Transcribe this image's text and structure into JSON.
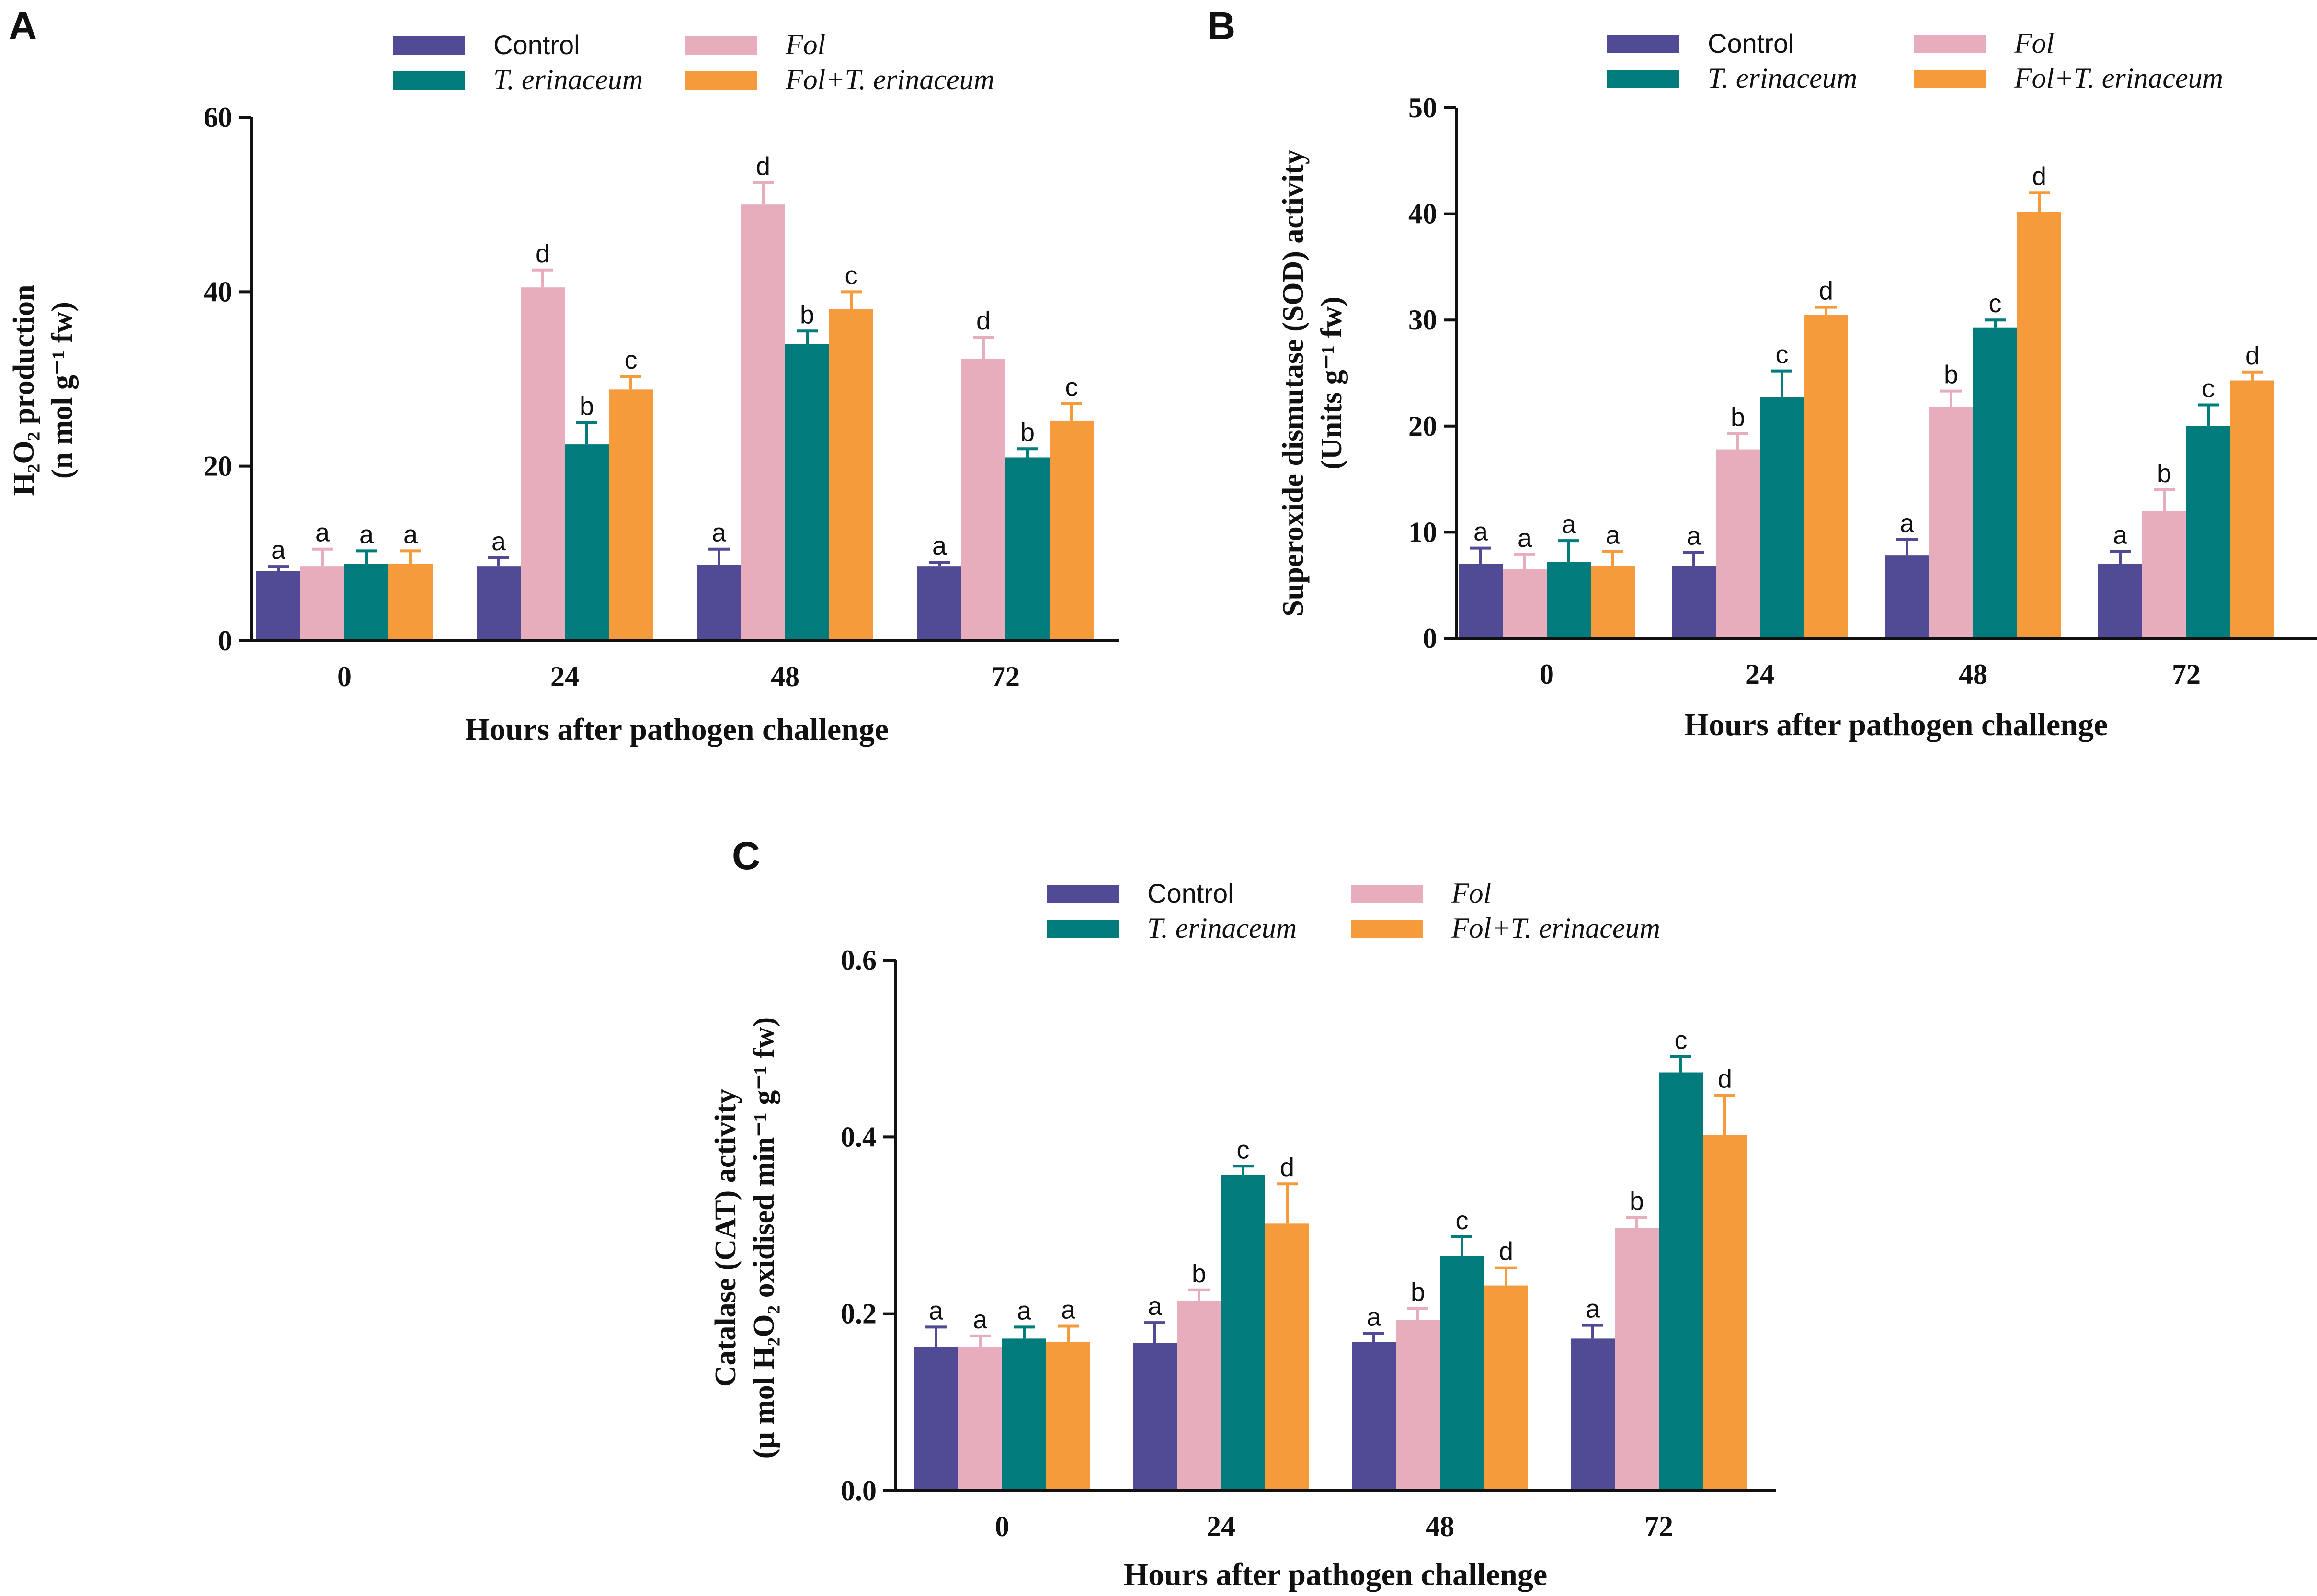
{
  "figure": {
    "colors": {
      "Control": "#514a94",
      "Fol": "#e8adbc",
      "T. erinaceum": "#017b7b",
      "Fol+T. erinaceum": "#f59b3c",
      "axis": "#111111"
    },
    "legend_labels": [
      {
        "key": "Control",
        "text": "Control",
        "italic": false
      },
      {
        "key": "T. erinaceum",
        "text": "T. erinaceum",
        "italic": true
      },
      {
        "key": "Fol",
        "text": "Fol",
        "italic": true
      },
      {
        "key": "Fol+T. erinaceum",
        "text": "Fol+T. erinaceum",
        "italic": true
      }
    ]
  },
  "chart_data": [
    {
      "panel": "A",
      "type": "bar",
      "title": "",
      "xlabel": "Hours after pathogen challenge",
      "ylabel_line1": "H₂O₂ production",
      "ylabel_line2": "(n mol g⁻¹ fw)",
      "ylim": [
        0,
        60
      ],
      "yticks": [
        "0",
        "20",
        "40",
        "60"
      ],
      "categories": [
        "0",
        "24",
        "48",
        "72"
      ],
      "series": [
        {
          "name": "Control",
          "values": [
            8,
            8.5,
            8.7,
            8.5
          ],
          "errors": [
            0.5,
            1.0,
            1.8,
            0.5
          ],
          "letters": [
            "a",
            "a",
            "a",
            "a"
          ]
        },
        {
          "name": "Fol",
          "values": [
            8.5,
            40.5,
            50,
            32.3
          ],
          "errors": [
            2.0,
            2.0,
            2.5,
            2.5
          ],
          "letters": [
            "a",
            "d",
            "d",
            "d"
          ]
        },
        {
          "name": "T. erinaceum",
          "values": [
            8.8,
            22.5,
            34,
            21
          ],
          "errors": [
            1.5,
            2.5,
            1.5,
            1.0
          ],
          "letters": [
            "a",
            "b",
            "b",
            "b"
          ]
        },
        {
          "name": "Fol+T. erinaceum",
          "values": [
            8.8,
            28.8,
            38,
            25.2
          ],
          "errors": [
            1.5,
            1.5,
            2.0,
            2.0
          ],
          "letters": [
            "a",
            "c",
            "c",
            "c"
          ]
        }
      ]
    },
    {
      "panel": "B",
      "type": "bar",
      "title": "",
      "xlabel": "Hours after pathogen challenge",
      "ylabel_line1": "Superoxide dismutase (SOD) activity",
      "ylabel_line2": "(Units g⁻¹ fw)",
      "ylim": [
        0,
        50
      ],
      "yticks": [
        "0",
        "10",
        "20",
        "30",
        "40",
        "50"
      ],
      "categories": [
        "0",
        "24",
        "48",
        "72"
      ],
      "series": [
        {
          "name": "Control",
          "values": [
            7,
            6.8,
            7.8,
            7
          ],
          "errors": [
            1.5,
            1.3,
            1.5,
            1.2
          ],
          "letters": [
            "a",
            "a",
            "a",
            "a"
          ]
        },
        {
          "name": "Fol",
          "values": [
            6.5,
            17.8,
            21.8,
            12
          ],
          "errors": [
            1.4,
            1.5,
            1.5,
            2.0
          ],
          "letters": [
            "a",
            "b",
            "b",
            "b"
          ]
        },
        {
          "name": "T. erinaceum",
          "values": [
            7.2,
            22.7,
            29.3,
            20
          ],
          "errors": [
            2.0,
            2.5,
            0.7,
            2.0
          ],
          "letters": [
            "a",
            "c",
            "c",
            "c"
          ]
        },
        {
          "name": "Fol+T. erinaceum",
          "values": [
            6.8,
            30.5,
            40.2,
            24.3
          ],
          "errors": [
            1.4,
            0.7,
            1.8,
            0.8
          ],
          "letters": [
            "a",
            "d",
            "d",
            "d"
          ]
        }
      ]
    },
    {
      "panel": "C",
      "type": "bar",
      "title": "",
      "xlabel": "Hours after pathogen challenge",
      "ylabel_line1": "Catalase (CAT) activity",
      "ylabel_line2": "(μ mol H₂O₂ oxidised min⁻¹ g⁻¹ fw)",
      "ylim": [
        0,
        0.6
      ],
      "yticks": [
        "0.0",
        "0.2",
        "0.4",
        "0.6"
      ],
      "categories": [
        "0",
        "24",
        "48",
        "72"
      ],
      "series": [
        {
          "name": "Control",
          "values": [
            0.163,
            0.167,
            0.168,
            0.172
          ],
          "errors": [
            0.022,
            0.023,
            0.01,
            0.015
          ],
          "letters": [
            "a",
            "a",
            "a",
            "a"
          ]
        },
        {
          "name": "Fol",
          "values": [
            0.163,
            0.215,
            0.193,
            0.297
          ],
          "errors": [
            0.012,
            0.012,
            0.013,
            0.012
          ],
          "letters": [
            "a",
            "b",
            "b",
            "b"
          ]
        },
        {
          "name": "T. erinaceum",
          "values": [
            0.172,
            0.357,
            0.265,
            0.473
          ],
          "errors": [
            0.013,
            0.01,
            0.022,
            0.018
          ],
          "letters": [
            "a",
            "c",
            "c",
            "c"
          ]
        },
        {
          "name": "Fol+T. erinaceum",
          "values": [
            0.168,
            0.302,
            0.232,
            0.402
          ],
          "errors": [
            0.018,
            0.045,
            0.02,
            0.045
          ],
          "letters": [
            "a",
            "d",
            "d",
            "d"
          ]
        }
      ]
    }
  ]
}
